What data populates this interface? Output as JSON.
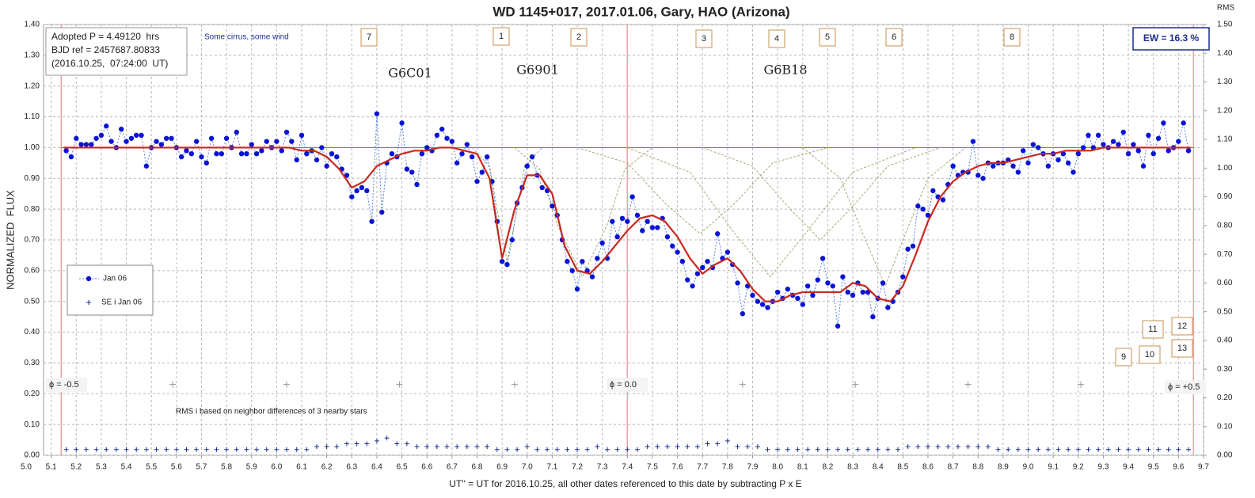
{
  "chart_data": {
    "type": "scatter",
    "title": "WD 1145+017, 2017.01.06, Gary, HAO (Arizona)",
    "x_label": "UT'' = UT for 2016.10.25, all other dates referenced to this date by subtracting P x E",
    "y_label": "NORMALIZED  FLUX",
    "y2_label": "RMS",
    "xlim": [
      5.0,
      9.7
    ],
    "ylim": [
      0,
      1.4
    ],
    "y2lim": [
      0,
      1.5
    ],
    "grid": true,
    "xticks": [
      {
        "value": 5,
        "label": "5.0"
      },
      5.1,
      5.2,
      5.3,
      5.4,
      5.5,
      5.6,
      5.7,
      5.8,
      5.9,
      {
        "value": 6,
        "label": "6.0"
      },
      6.1,
      6.2,
      6.3,
      6.4,
      6.5,
      6.6,
      6.7,
      6.8,
      6.9,
      {
        "value": 7,
        "label": "7.0"
      },
      7.1,
      7.2,
      7.3,
      7.4,
      7.5,
      7.6,
      7.7,
      7.8,
      7.9,
      {
        "value": 8,
        "label": "8.0"
      },
      8.1,
      8.2,
      8.3,
      8.4,
      8.5,
      8.6,
      8.7,
      8.8,
      8.9,
      {
        "value": 9,
        "label": "9.0"
      },
      9.1,
      9.2,
      9.3,
      9.4,
      9.5,
      9.6,
      9.7
    ],
    "yticks": [
      {
        "value": 0,
        "label": "0.00"
      },
      {
        "value": 0.1,
        "label": "0.10"
      },
      {
        "value": 0.2,
        "label": "0.20"
      },
      {
        "value": 0.3,
        "label": "0.30"
      },
      {
        "value": 0.4,
        "label": "0.40"
      },
      {
        "value": 0.5,
        "label": "0.50"
      },
      {
        "value": 0.6,
        "label": "0.60"
      },
      {
        "value": 0.7,
        "label": "0.70"
      },
      {
        "value": 0.8,
        "label": "0.80"
      },
      {
        "value": 0.9,
        "label": "0.90"
      },
      {
        "value": 1,
        "label": "1.00"
      },
      {
        "value": 1.1,
        "label": "1.10"
      },
      {
        "value": 1.2,
        "label": "1.20"
      },
      {
        "value": 1.3,
        "label": "1.30"
      },
      {
        "value": 1.4,
        "label": "1.40"
      }
    ],
    "y2ticks": [
      {
        "value": 0,
        "label": "0.00"
      },
      {
        "value": 0.1,
        "label": "0.10"
      },
      {
        "value": 0.2,
        "label": "0.20"
      },
      {
        "value": 0.3,
        "label": "0.30"
      },
      {
        "value": 0.4,
        "label": "0.40"
      },
      {
        "value": 0.5,
        "label": "0.50"
      },
      {
        "value": 0.6,
        "label": "0.60"
      },
      {
        "value": 0.7,
        "label": "0.70"
      },
      {
        "value": 0.8,
        "label": "0.80"
      },
      {
        "value": 0.9,
        "label": "0.90"
      },
      {
        "value": 1,
        "label": "1.00"
      },
      {
        "value": 1.1,
        "label": "1.10"
      },
      {
        "value": 1.2,
        "label": "1.20"
      },
      {
        "value": 1.3,
        "label": "1.30"
      },
      {
        "value": 1.4,
        "label": "1.40"
      },
      {
        "value": 1.5,
        "label": "1.50"
      }
    ],
    "series": [
      {
        "name": "Jan 06",
        "color": "#0a14d6",
        "x": [
          5.16,
          5.18,
          5.2,
          5.22,
          5.24,
          5.26,
          5.28,
          5.3,
          5.32,
          5.34,
          5.36,
          5.38,
          5.4,
          5.42,
          5.44,
          5.46,
          5.48,
          5.5,
          5.52,
          5.54,
          5.56,
          5.58,
          5.6,
          5.62,
          5.64,
          5.66,
          5.68,
          5.7,
          5.72,
          5.74,
          5.76,
          5.78,
          5.8,
          5.82,
          5.84,
          5.86,
          5.88,
          5.9,
          5.92,
          5.94,
          5.96,
          5.98,
          6.0,
          6.02,
          6.04,
          6.06,
          6.08,
          6.1,
          6.12,
          6.14,
          6.16,
          6.18,
          6.2,
          6.22,
          6.24,
          6.26,
          6.28,
          6.3,
          6.32,
          6.34,
          6.36,
          6.38,
          6.4,
          6.42,
          6.44,
          6.46,
          6.48,
          6.5,
          6.52,
          6.54,
          6.56,
          6.58,
          6.6,
          6.62,
          6.64,
          6.66,
          6.68,
          6.7,
          6.72,
          6.74,
          6.76,
          6.78,
          6.8,
          6.82,
          6.84,
          6.86,
          6.88,
          6.9,
          6.92,
          6.94,
          6.96,
          6.98,
          7.0,
          7.02,
          7.04,
          7.06,
          7.08,
          7.1,
          7.12,
          7.14,
          7.16,
          7.18,
          7.2,
          7.22,
          7.24,
          7.26,
          7.28,
          7.3,
          7.32,
          7.34,
          7.36,
          7.38,
          7.4,
          7.42,
          7.44,
          7.46,
          7.48,
          7.5,
          7.52,
          7.54,
          7.56,
          7.58,
          7.6,
          7.62,
          7.64,
          7.66,
          7.68,
          7.7,
          7.72,
          7.74,
          7.76,
          7.78,
          7.8,
          7.82,
          7.84,
          7.86,
          7.88,
          7.9,
          7.92,
          7.94,
          7.96,
          7.98,
          8.0,
          8.02,
          8.04,
          8.06,
          8.08,
          8.1,
          8.12,
          8.14,
          8.16,
          8.18,
          8.2,
          8.22,
          8.24,
          8.26,
          8.28,
          8.3,
          8.32,
          8.34,
          8.36,
          8.38,
          8.4,
          8.42,
          8.44,
          8.46,
          8.48,
          8.5,
          8.52,
          8.54,
          8.56,
          8.58,
          8.6,
          8.62,
          8.64,
          8.66,
          8.68,
          8.7,
          8.72,
          8.74,
          8.76,
          8.78,
          8.8,
          8.82,
          8.84,
          8.86,
          8.88,
          8.9,
          8.92,
          8.94,
          8.96,
          8.98,
          9.0,
          9.02,
          9.04,
          9.06,
          9.08,
          9.1,
          9.12,
          9.14,
          9.16,
          9.18,
          9.2,
          9.22,
          9.24,
          9.26,
          9.28,
          9.3,
          9.32,
          9.34,
          9.36,
          9.38,
          9.4,
          9.42,
          9.44,
          9.46,
          9.48,
          9.5,
          9.52,
          9.54,
          9.56,
          9.58,
          9.6,
          9.62,
          9.64
        ],
        "values": [
          0.99,
          0.97,
          1.03,
          1.01,
          1.01,
          1.01,
          1.03,
          1.04,
          1.07,
          1.02,
          1.0,
          1.06,
          1.02,
          1.03,
          1.04,
          1.04,
          0.94,
          1.0,
          1.02,
          1.01,
          1.03,
          1.03,
          1.0,
          0.97,
          0.99,
          0.98,
          1.02,
          0.97,
          0.95,
          1.03,
          0.98,
          0.98,
          1.03,
          1.0,
          1.05,
          0.98,
          0.98,
          1.01,
          0.98,
          0.99,
          1.02,
          1.0,
          1.02,
          0.99,
          1.05,
          1.02,
          0.96,
          1.04,
          0.98,
          0.99,
          0.96,
          1.0,
          0.94,
          0.98,
          0.97,
          0.93,
          0.91,
          0.84,
          0.86,
          0.87,
          0.86,
          0.76,
          1.11,
          0.79,
          0.95,
          0.98,
          0.97,
          1.08,
          0.93,
          0.92,
          0.88,
          0.98,
          1.0,
          0.99,
          1.04,
          1.06,
          1.03,
          1.02,
          0.95,
          0.98,
          1.01,
          0.97,
          0.89,
          0.92,
          0.97,
          0.89,
          0.76,
          0.63,
          0.62,
          0.7,
          0.82,
          0.87,
          0.94,
          0.97,
          0.91,
          0.87,
          0.86,
          0.81,
          0.78,
          0.7,
          0.63,
          0.6,
          0.54,
          0.63,
          0.6,
          0.58,
          0.64,
          0.69,
          0.64,
          0.76,
          0.71,
          0.77,
          0.76,
          0.84,
          0.78,
          0.73,
          0.76,
          0.74,
          0.74,
          0.77,
          0.71,
          0.68,
          0.66,
          0.63,
          0.57,
          0.55,
          0.59,
          0.61,
          0.63,
          0.61,
          0.72,
          0.64,
          0.66,
          0.62,
          0.56,
          0.46,
          0.55,
          0.52,
          0.5,
          0.49,
          0.48,
          0.5,
          0.53,
          0.51,
          0.54,
          0.52,
          0.51,
          0.49,
          0.55,
          0.52,
          0.57,
          0.64,
          0.56,
          0.55,
          0.42,
          0.58,
          0.53,
          0.52,
          0.56,
          0.53,
          0.53,
          0.45,
          0.51,
          0.56,
          0.48,
          0.5,
          0.53,
          0.58,
          0.67,
          0.68,
          0.81,
          0.8,
          0.78,
          0.86,
          0.84,
          0.83,
          0.88,
          0.94,
          0.91,
          0.92,
          0.92,
          1.02,
          0.91,
          0.9,
          0.95,
          0.94,
          0.95,
          0.95,
          0.96,
          0.94,
          0.92,
          0.99,
          0.95,
          1.01,
          1.0,
          0.98,
          0.94,
          0.98,
          0.96,
          0.98,
          0.95,
          0.92,
          0.98,
          1.0,
          1.04,
          1.0,
          1.04,
          1.01,
          1.0,
          1.02,
          1.01,
          1.05,
          0.98,
          1.01,
          0.99,
          0.94,
          1.04,
          0.98,
          1.03,
          1.08,
          0.99,
          1.0,
          1.02,
          1.08,
          0.99
        ]
      },
      {
        "name": "SE i Jan 06",
        "color": "#1c2e8c",
        "axis": "y2",
        "x": [
          5.16,
          5.2,
          5.24,
          5.28,
          5.32,
          5.36,
          5.4,
          5.44,
          5.48,
          5.52,
          5.56,
          5.6,
          5.64,
          5.68,
          5.72,
          5.76,
          5.8,
          5.84,
          5.88,
          5.92,
          5.96,
          6.0,
          6.04,
          6.08,
          6.12,
          6.16,
          6.2,
          6.24,
          6.28,
          6.32,
          6.36,
          6.4,
          6.44,
          6.48,
          6.52,
          6.56,
          6.6,
          6.64,
          6.68,
          6.72,
          6.76,
          6.8,
          6.84,
          6.88,
          6.92,
          6.96,
          7.0,
          7.04,
          7.08,
          7.12,
          7.16,
          7.2,
          7.24,
          7.28,
          7.32,
          7.36,
          7.4,
          7.44,
          7.48,
          7.52,
          7.56,
          7.6,
          7.64,
          7.68,
          7.72,
          7.76,
          7.8,
          7.84,
          7.88,
          7.92,
          7.96,
          8.0,
          8.04,
          8.08,
          8.12,
          8.16,
          8.2,
          8.24,
          8.28,
          8.32,
          8.36,
          8.4,
          8.44,
          8.48,
          8.52,
          8.56,
          8.6,
          8.64,
          8.68,
          8.72,
          8.76,
          8.8,
          8.84,
          8.88,
          8.92,
          8.96,
          9.0,
          9.04,
          9.08,
          9.12,
          9.16,
          9.2,
          9.24,
          9.28,
          9.32,
          9.36,
          9.4,
          9.44,
          9.48,
          9.52,
          9.56,
          9.6,
          9.64
        ],
        "values": [
          0.02,
          0.02,
          0.02,
          0.02,
          0.02,
          0.02,
          0.02,
          0.02,
          0.02,
          0.02,
          0.02,
          0.02,
          0.02,
          0.02,
          0.02,
          0.02,
          0.02,
          0.02,
          0.02,
          0.02,
          0.02,
          0.02,
          0.02,
          0.02,
          0.02,
          0.03,
          0.03,
          0.03,
          0.04,
          0.04,
          0.04,
          0.05,
          0.06,
          0.04,
          0.04,
          0.03,
          0.03,
          0.03,
          0.03,
          0.03,
          0.03,
          0.03,
          0.03,
          0.02,
          0.02,
          0.02,
          0.03,
          0.02,
          0.02,
          0.02,
          0.02,
          0.02,
          0.02,
          0.03,
          0.02,
          0.02,
          0.02,
          0.02,
          0.03,
          0.03,
          0.03,
          0.03,
          0.03,
          0.03,
          0.04,
          0.04,
          0.05,
          0.03,
          0.03,
          0.03,
          0.02,
          0.02,
          0.02,
          0.02,
          0.02,
          0.02,
          0.02,
          0.02,
          0.02,
          0.02,
          0.02,
          0.02,
          0.02,
          0.02,
          0.03,
          0.03,
          0.03,
          0.03,
          0.03,
          0.03,
          0.03,
          0.03,
          0.03,
          0.02,
          0.02,
          0.02,
          0.02,
          0.02,
          0.02,
          0.02,
          0.02,
          0.02,
          0.02,
          0.02,
          0.02,
          0.02,
          0.02,
          0.02,
          0.02,
          0.02,
          0.02,
          0.02,
          0.02
        ]
      }
    ],
    "model": {
      "color": "#c8281e",
      "x": [
        5.15,
        5.2,
        5.25,
        5.3,
        5.35,
        5.4,
        5.45,
        5.5,
        5.55,
        5.6,
        5.65,
        5.7,
        5.75,
        5.8,
        5.85,
        5.9,
        5.95,
        6.0,
        6.05,
        6.1,
        6.15,
        6.2,
        6.25,
        6.3,
        6.35,
        6.4,
        6.45,
        6.5,
        6.55,
        6.6,
        6.65,
        6.7,
        6.75,
        6.8,
        6.85,
        6.9,
        6.95,
        7.0,
        7.05,
        7.1,
        7.15,
        7.2,
        7.25,
        7.3,
        7.35,
        7.4,
        7.45,
        7.5,
        7.55,
        7.6,
        7.65,
        7.7,
        7.75,
        7.8,
        7.85,
        7.9,
        7.95,
        8.0,
        8.05,
        8.1,
        8.15,
        8.2,
        8.25,
        8.3,
        8.35,
        8.4,
        8.45,
        8.5,
        8.55,
        8.6,
        8.65,
        8.7,
        8.75,
        8.8,
        8.85,
        8.9,
        8.95,
        9.0,
        9.05,
        9.1,
        9.15,
        9.2,
        9.25,
        9.3,
        9.35,
        9.4,
        9.45,
        9.5,
        9.55,
        9.6,
        9.65
      ],
      "values": [
        1.0,
        1.0,
        1.0,
        1.0,
        1.0,
        1.0,
        1.0,
        1.0,
        1.0,
        1.0,
        1.0,
        1.0,
        1.0,
        1.0,
        1.0,
        1.0,
        1.0,
        1.0,
        1.0,
        0.99,
        0.99,
        0.97,
        0.93,
        0.87,
        0.89,
        0.94,
        0.96,
        0.98,
        0.99,
        0.99,
        1.0,
        1.0,
        0.99,
        0.98,
        0.9,
        0.64,
        0.8,
        0.91,
        0.91,
        0.85,
        0.68,
        0.6,
        0.59,
        0.63,
        0.68,
        0.73,
        0.77,
        0.78,
        0.76,
        0.71,
        0.64,
        0.59,
        0.62,
        0.64,
        0.6,
        0.54,
        0.5,
        0.5,
        0.52,
        0.53,
        0.53,
        0.53,
        0.53,
        0.56,
        0.55,
        0.51,
        0.5,
        0.55,
        0.65,
        0.76,
        0.84,
        0.89,
        0.92,
        0.94,
        0.95,
        0.95,
        0.96,
        0.97,
        0.98,
        0.98,
        0.99,
        0.99,
        0.99,
        1.0,
        1.0,
        1.0,
        1.0,
        1.0,
        1.0,
        1.0,
        1.0
      ]
    },
    "baseline": 1,
    "dip_color": "#a8a878",
    "dips": [
      {
        "x": [
          6.78,
          6.85,
          6.88,
          6.92,
          6.96,
          6.99,
          7.06
        ],
        "values": [
          1.0,
          0.94,
          0.8,
          0.63,
          0.8,
          0.94,
          1.0
        ]
      },
      {
        "x": [
          6.95,
          7.05,
          7.12,
          7.22,
          7.32,
          7.39,
          7.5
        ],
        "values": [
          1.0,
          0.93,
          0.75,
          0.58,
          0.75,
          0.93,
          1.0
        ]
      },
      {
        "x": [
          7.2,
          7.4,
          7.55,
          7.69,
          7.83,
          7.98,
          8.2
        ],
        "values": [
          1.0,
          0.95,
          0.82,
          0.72,
          0.82,
          0.95,
          1.0
        ]
      },
      {
        "x": [
          7.4,
          7.65,
          7.82,
          7.97,
          8.12,
          8.3,
          8.55
        ],
        "values": [
          1.0,
          0.92,
          0.73,
          0.58,
          0.73,
          0.92,
          1.0
        ]
      },
      {
        "x": [
          7.7,
          7.9,
          8.05,
          8.17,
          8.29,
          8.44,
          8.65
        ],
        "values": [
          1.0,
          0.94,
          0.8,
          0.7,
          0.8,
          0.94,
          1.0
        ]
      },
      {
        "x": [
          8.1,
          8.25,
          8.35,
          8.43,
          8.5,
          8.6,
          8.75
        ],
        "values": [
          1.0,
          0.9,
          0.7,
          0.55,
          0.7,
          0.9,
          1.0
        ]
      }
    ],
    "phase_lines": [
      {
        "x": 5.14,
        "label": "ϕ = -0.5"
      },
      {
        "x": 7.4,
        "label": "ϕ = 0.0"
      },
      {
        "x": 9.66,
        "label": "ϕ = +0.5"
      }
    ],
    "phase_ticks": {
      "x": [
        5.585,
        6.04,
        6.49,
        6.95,
        7.86,
        8.31,
        8.76,
        9.21
      ],
      "y": 0.23
    },
    "info_box": [
      "Adopted P = 4.49120  hrs",
      "BJD ref = 2457687.80833",
      "(2016.10.25,  07:24:00  UT)"
    ],
    "weather_note": "Some cirrus, some wind",
    "ew_label": "EW = 16.3 %",
    "rms_note": "RMS i based on neighbor differences of 3 nearby stars",
    "event_labels": [
      "G6C01",
      "G6901",
      "G6B18"
    ],
    "markers": [
      "7",
      "1",
      "2",
      "3",
      "4",
      "5",
      "6",
      "8",
      "9",
      "10",
      "11",
      "12",
      "13"
    ]
  }
}
